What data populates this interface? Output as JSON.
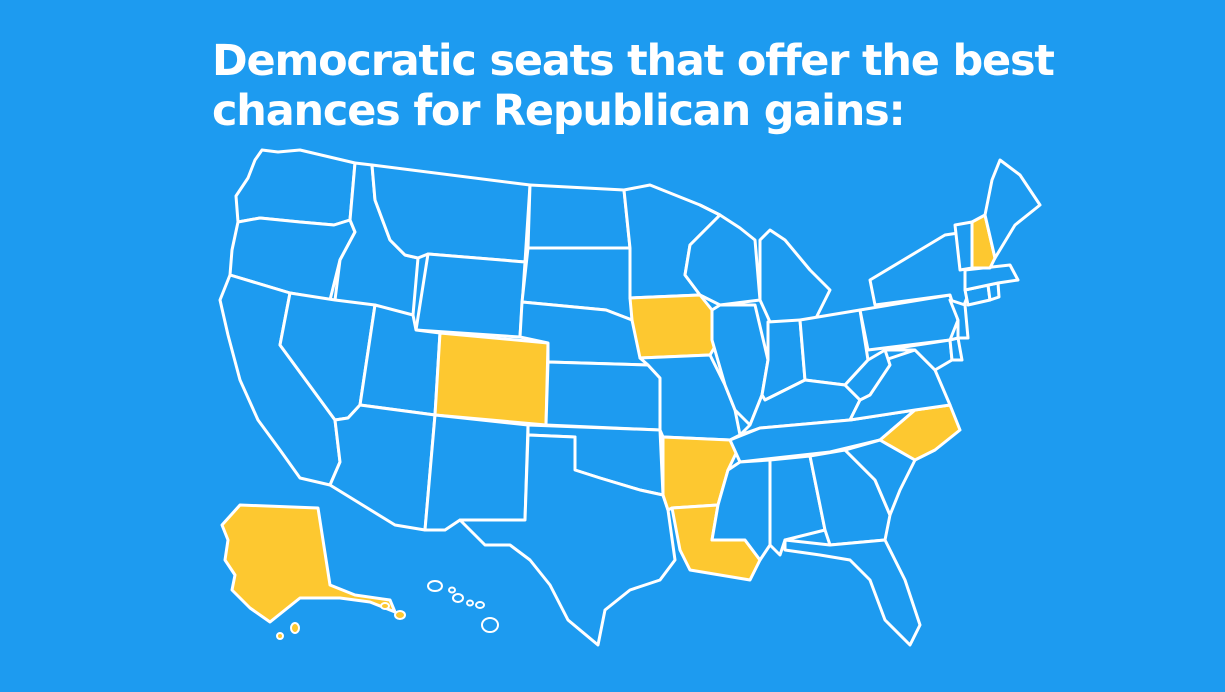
{
  "title": {
    "line1": "Democratic seats that offer the best",
    "line2": "chances for Republican gains:"
  },
  "colors": {
    "background": "#1d9bf0",
    "highlight": "#fdc830",
    "border": "#ffffff"
  },
  "highlighted_states": [
    "NH",
    "IA",
    "CO",
    "AR",
    "LA",
    "NC",
    "AK"
  ]
}
